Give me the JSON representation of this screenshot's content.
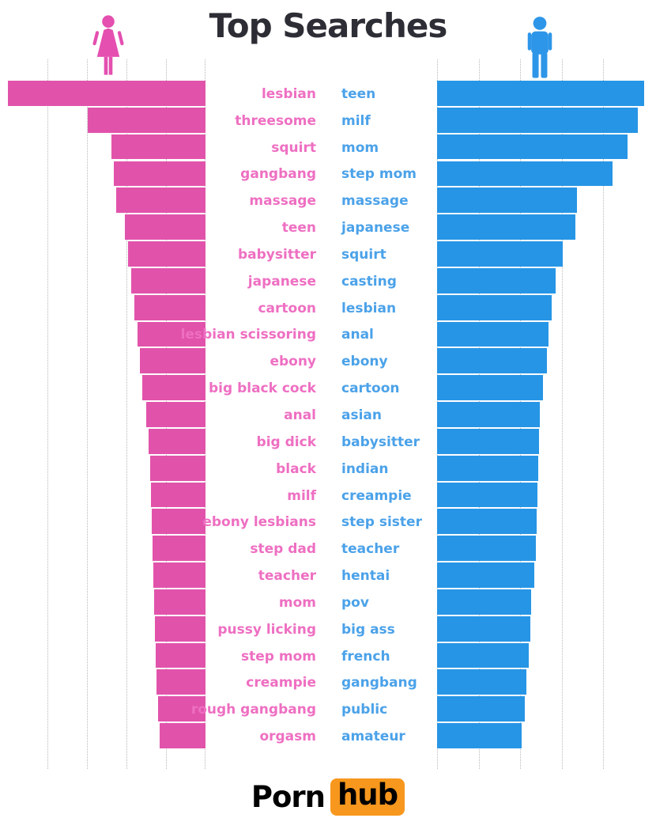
{
  "title": "Top Searches",
  "logo": {
    "part1": "Porn",
    "part2": "hub"
  },
  "colors": {
    "title": "#2d2d35",
    "female_bar": "#e153ab",
    "female_text": "#ee6fc2",
    "female_icon": "#e44fb0",
    "male_bar": "#2795e5",
    "male_text": "#4ba2e9",
    "male_icon": "#2e96e8",
    "gridline": "#b9b9b9",
    "logo_orange": "#f7971d",
    "logo_text": "#000000",
    "background": "#ffffff"
  },
  "icons": {
    "female": "female-figure-icon",
    "male": "male-figure-icon"
  },
  "chart_data": {
    "type": "bar",
    "orientation": "horizontal",
    "layout": "mirrored, female bars right-anchored on left panel, male bars left-anchored on right panel",
    "title": "Top Searches",
    "axis_note": "no numeric axis labels shown; 5 dotted gridline intervals per side; values are % of panel max",
    "grid": true,
    "series_names": [
      "female",
      "male"
    ],
    "rows": [
      {
        "rank": 1,
        "female_term": "lesbian",
        "female_pct": 100.0,
        "male_term": "teen",
        "male_pct": 99.6
      },
      {
        "rank": 2,
        "female_term": "threesome",
        "female_pct": 59.6,
        "male_term": "milf",
        "male_pct": 96.6
      },
      {
        "rank": 3,
        "female_term": "squirt",
        "female_pct": 47.6,
        "male_term": "mom",
        "male_pct": 91.6
      },
      {
        "rank": 4,
        "female_term": "gangbang",
        "female_pct": 46.4,
        "male_term": "step mom",
        "male_pct": 84.4
      },
      {
        "rank": 5,
        "female_term": "massage",
        "female_pct": 45.2,
        "male_term": "massage",
        "male_pct": 67.3
      },
      {
        "rank": 6,
        "female_term": "teen",
        "female_pct": 40.8,
        "male_term": "japanese",
        "male_pct": 66.5
      },
      {
        "rank": 7,
        "female_term": "babysitter",
        "female_pct": 39.2,
        "male_term": "squirt",
        "male_pct": 60.5
      },
      {
        "rank": 8,
        "female_term": "japanese",
        "female_pct": 37.6,
        "male_term": "casting",
        "male_pct": 57.0
      },
      {
        "rank": 9,
        "female_term": "cartoon",
        "female_pct": 36.0,
        "male_term": "lesbian",
        "male_pct": 55.1
      },
      {
        "rank": 10,
        "female_term": "lesbian scissoring",
        "female_pct": 34.4,
        "male_term": "anal",
        "male_pct": 53.6
      },
      {
        "rank": 11,
        "female_term": "ebony",
        "female_pct": 33.2,
        "male_term": "ebony",
        "male_pct": 52.9
      },
      {
        "rank": 12,
        "female_term": "big black cock",
        "female_pct": 32.0,
        "male_term": "cartoon",
        "male_pct": 51.0
      },
      {
        "rank": 13,
        "female_term": "anal",
        "female_pct": 30.0,
        "male_term": "asian",
        "male_pct": 49.4
      },
      {
        "rank": 14,
        "female_term": "big dick",
        "female_pct": 28.8,
        "male_term": "babysitter",
        "male_pct": 49.0
      },
      {
        "rank": 15,
        "female_term": "black",
        "female_pct": 28.0,
        "male_term": "indian",
        "male_pct": 48.7
      },
      {
        "rank": 16,
        "female_term": "milf",
        "female_pct": 27.6,
        "male_term": "creampie",
        "male_pct": 48.3
      },
      {
        "rank": 17,
        "female_term": "ebony lesbians",
        "female_pct": 27.2,
        "male_term": "step sister",
        "male_pct": 47.9
      },
      {
        "rank": 18,
        "female_term": "step dad",
        "female_pct": 26.8,
        "male_term": "teacher",
        "male_pct": 47.5
      },
      {
        "rank": 19,
        "female_term": "teacher",
        "female_pct": 26.4,
        "male_term": "hentai",
        "male_pct": 46.8
      },
      {
        "rank": 20,
        "female_term": "mom",
        "female_pct": 26.0,
        "male_term": "pov",
        "male_pct": 45.2
      },
      {
        "rank": 21,
        "female_term": "pussy licking",
        "female_pct": 25.6,
        "male_term": "big ass",
        "male_pct": 44.9
      },
      {
        "rank": 22,
        "female_term": "step mom",
        "female_pct": 25.2,
        "male_term": "french",
        "male_pct": 44.1
      },
      {
        "rank": 23,
        "female_term": "creampie",
        "female_pct": 24.8,
        "male_term": "gangbang",
        "male_pct": 43.0
      },
      {
        "rank": 24,
        "female_term": "rough gangbang",
        "female_pct": 24.0,
        "male_term": "public",
        "male_pct": 42.2
      },
      {
        "rank": 25,
        "female_term": "orgasm",
        "female_pct": 23.2,
        "male_term": "amateur",
        "male_pct": 40.7
      }
    ]
  }
}
